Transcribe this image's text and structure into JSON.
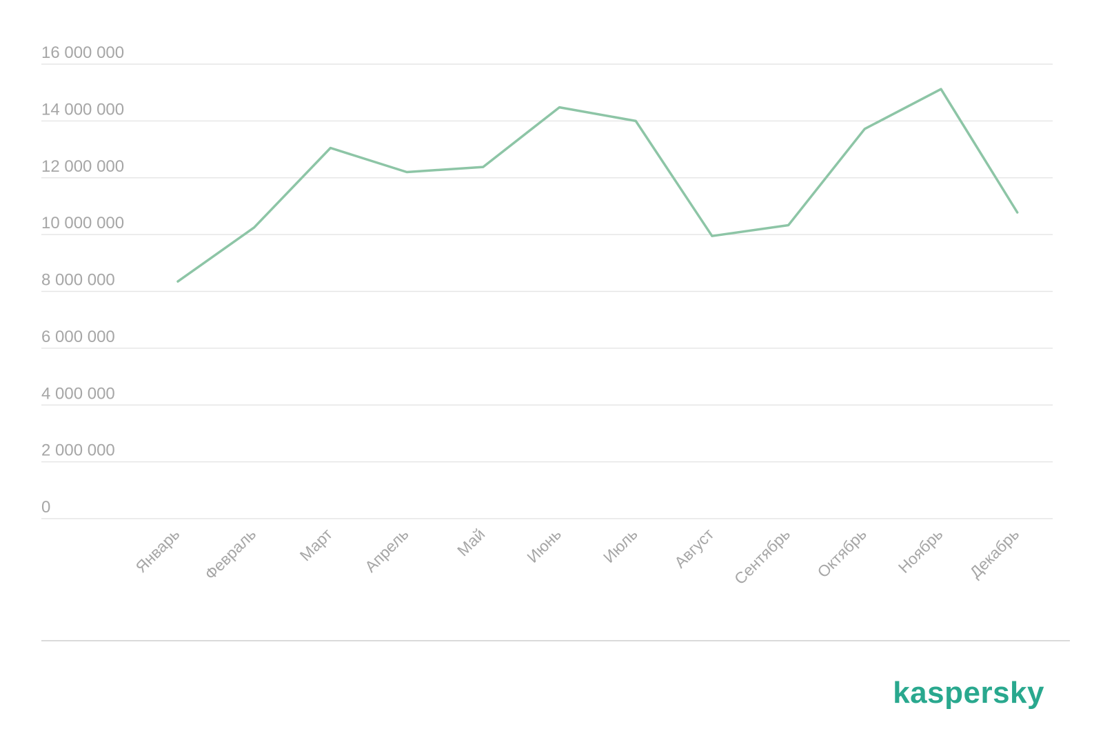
{
  "brand": {
    "logo_text": "kaspersky",
    "color": "#29a88e"
  },
  "colors": {
    "line": "#8dc5a6",
    "grid": "#e6e6e6",
    "tick_text": "#a6a6a6"
  },
  "chart_data": {
    "type": "line",
    "title": "",
    "xlabel": "",
    "ylabel": "",
    "categories": [
      "Январь",
      "Февраль",
      "Март",
      "Апрель",
      "Май",
      "Июнь",
      "Июль",
      "Август",
      "Сентябрь",
      "Октябрь",
      "Ноябрь",
      "Декабрь"
    ],
    "series": [
      {
        "values": [
          8350000,
          10250000,
          13050000,
          12200000,
          12380000,
          14480000,
          14000000,
          9950000,
          10330000,
          13720000,
          15120000,
          10780000
        ]
      }
    ],
    "ylim": [
      0,
      16000000
    ],
    "yticks": [
      0,
      2000000,
      4000000,
      6000000,
      8000000,
      10000000,
      12000000,
      14000000,
      16000000
    ],
    "ytick_labels": [
      "0",
      "2 000 000",
      "4 000 000",
      "6 000 000",
      "8 000 000",
      "10 000 000",
      "12 000 000",
      "14 000 000",
      "16 000 000"
    ],
    "grid": true,
    "legend": "none"
  }
}
